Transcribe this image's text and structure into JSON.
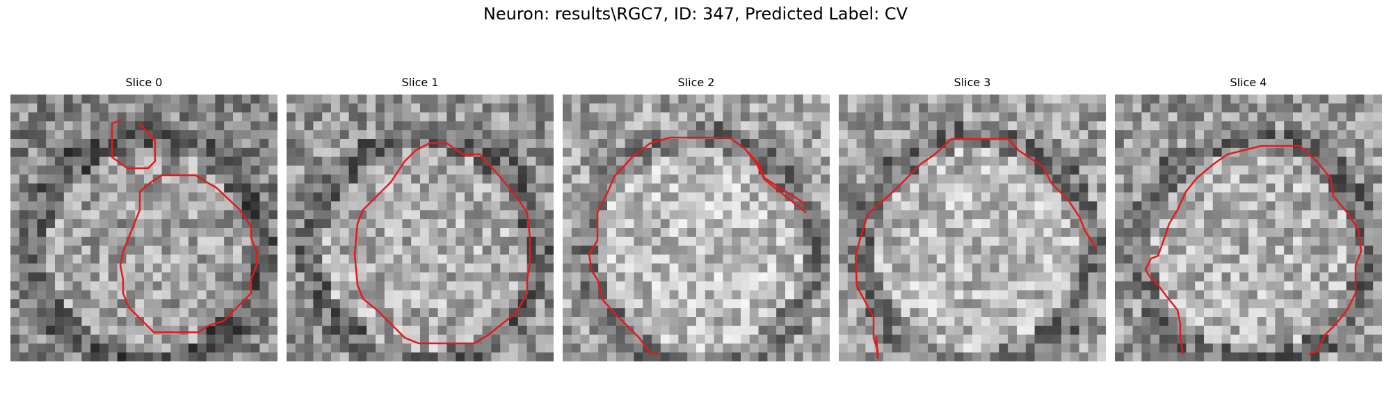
{
  "figure": {
    "title": "Neuron: results\\RGC7, ID: 347, Predicted Label: CV"
  },
  "colors": {
    "contour": "#e31a1c",
    "background": "#ffffff"
  },
  "panels": [
    {
      "title": "Slice 0",
      "brightness": 0.55,
      "seed": 11
    },
    {
      "title": "Slice 1",
      "brightness": 0.6,
      "seed": 23
    },
    {
      "title": "Slice 2",
      "brightness": 0.66,
      "seed": 37
    },
    {
      "title": "Slice 3",
      "brightness": 0.64,
      "seed": 51
    },
    {
      "title": "Slice 4",
      "brightness": 0.62,
      "seed": 67
    }
  ]
}
